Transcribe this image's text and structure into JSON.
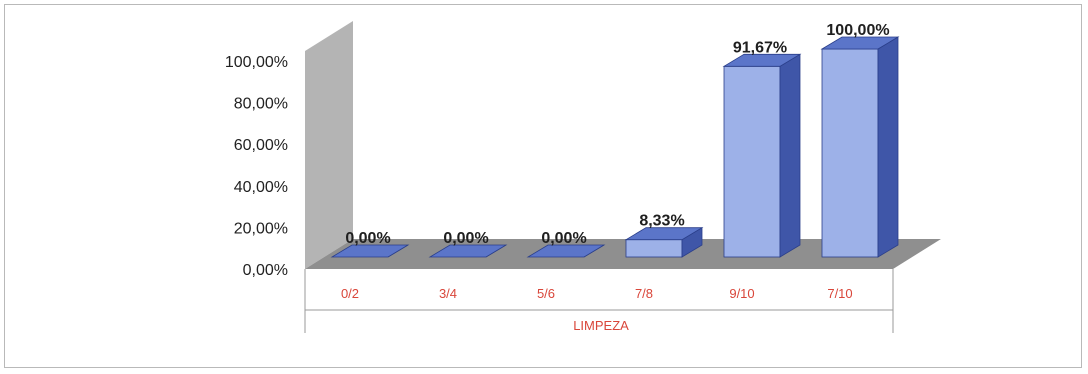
{
  "colors": {
    "bar_front": "#9db1e8",
    "bar_side": "#3f56a8",
    "bar_top": "#5b75c9",
    "wall": "#b4b4b4",
    "floor": "#8f8f8f",
    "axis_text": "#222222",
    "category_text": "#d9463a"
  },
  "chart_data": {
    "type": "bar",
    "style": "3d-column",
    "categories": [
      "0/2",
      "3/4",
      "5/6",
      "7/8",
      "9/10",
      "7/10"
    ],
    "values": [
      0.0,
      0.0,
      0.0,
      8.33,
      91.67,
      100.0
    ],
    "data_labels": [
      "0,00%",
      "0,00%",
      "0,00%",
      "8,33%",
      "91,67%",
      "100,00%"
    ],
    "y_ticks": [
      0,
      20,
      40,
      60,
      80,
      100
    ],
    "y_tick_labels": [
      "0,00%",
      "20,00%",
      "40,00%",
      "60,00%",
      "80,00%",
      "100,00%"
    ],
    "ylim": [
      0,
      100
    ],
    "xlabel": "LIMPEZA",
    "ylabel": "",
    "title": "",
    "legend": "none",
    "grid": false
  }
}
